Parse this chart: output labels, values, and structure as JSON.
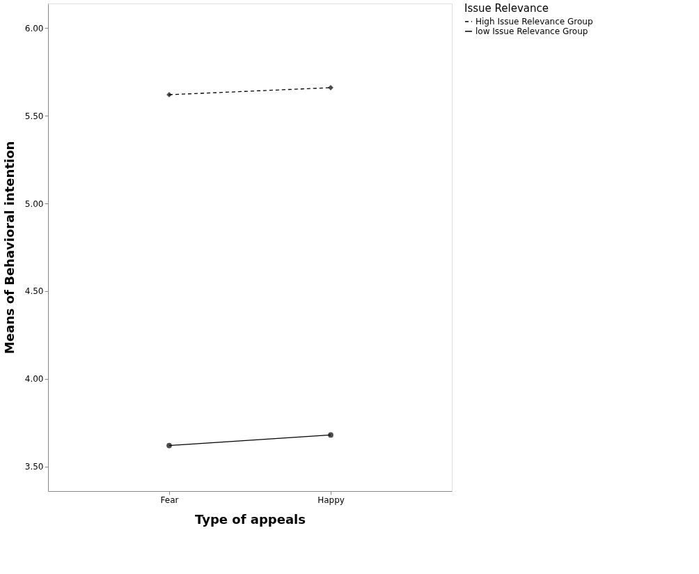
{
  "chart_data": {
    "type": "line",
    "xlabel": "Type of appeals",
    "ylabel": "Means of Behavioral intention",
    "legend_title": "Issue Relevance",
    "categories": [
      "Fear",
      "Happy"
    ],
    "series": [
      {
        "name": "High Issue Relevance Group",
        "color": "#000000",
        "values": [
          5.62,
          5.66
        ],
        "line_style": "dashed",
        "marker": "diamond"
      },
      {
        "name": "low Issue Relevance Group",
        "color": "#000000",
        "values": [
          3.62,
          3.68
        ],
        "line_style": "solid",
        "marker": "circle"
      }
    ],
    "ylim": [
      3.36,
      6.14
    ],
    "yticks": [
      {
        "value": 3.5,
        "label": "3.50"
      },
      {
        "value": 4.0,
        "label": "4.00"
      },
      {
        "value": 4.5,
        "label": "4.50"
      },
      {
        "value": 5.0,
        "label": "5.00"
      },
      {
        "value": 5.5,
        "label": "5.50"
      },
      {
        "value": 6.0,
        "label": "6.00"
      }
    ],
    "grid": false,
    "legend": "right"
  }
}
